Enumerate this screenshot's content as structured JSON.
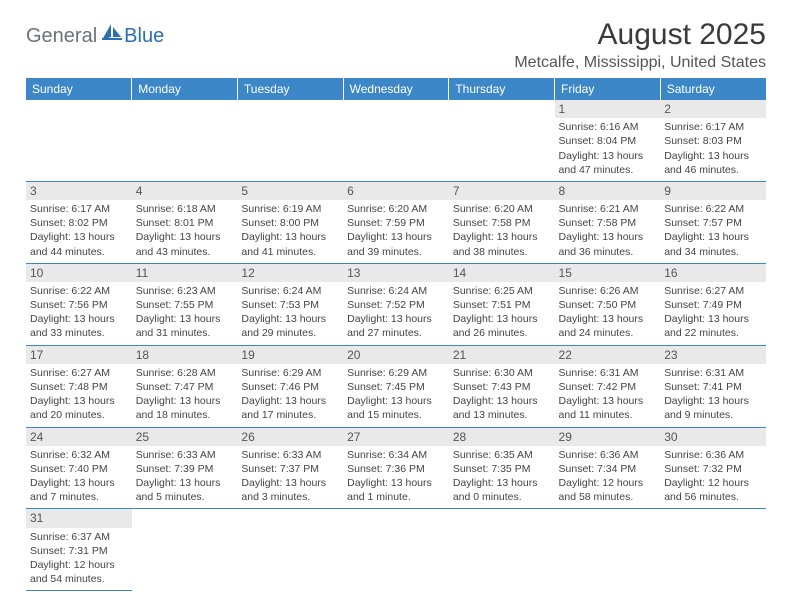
{
  "logo": {
    "part1": "General",
    "part2": "Blue",
    "shape_color": "#2b6fb0",
    "text1_color": "#6b7278"
  },
  "header": {
    "title": "August 2025",
    "location": "Metcalfe, Mississippi, United States"
  },
  "colors": {
    "header_bg": "#3c87c7",
    "header_fg": "#ffffff",
    "daynum_bg": "#e9e9e9",
    "border": "#3c87c7"
  },
  "weekdays": [
    "Sunday",
    "Monday",
    "Tuesday",
    "Wednesday",
    "Thursday",
    "Friday",
    "Saturday"
  ],
  "weeks": [
    [
      null,
      null,
      null,
      null,
      null,
      {
        "n": "1",
        "sunrise": "Sunrise: 6:16 AM",
        "sunset": "Sunset: 8:04 PM",
        "day1": "Daylight: 13 hours",
        "day2": "and 47 minutes."
      },
      {
        "n": "2",
        "sunrise": "Sunrise: 6:17 AM",
        "sunset": "Sunset: 8:03 PM",
        "day1": "Daylight: 13 hours",
        "day2": "and 46 minutes."
      }
    ],
    [
      {
        "n": "3",
        "sunrise": "Sunrise: 6:17 AM",
        "sunset": "Sunset: 8:02 PM",
        "day1": "Daylight: 13 hours",
        "day2": "and 44 minutes."
      },
      {
        "n": "4",
        "sunrise": "Sunrise: 6:18 AM",
        "sunset": "Sunset: 8:01 PM",
        "day1": "Daylight: 13 hours",
        "day2": "and 43 minutes."
      },
      {
        "n": "5",
        "sunrise": "Sunrise: 6:19 AM",
        "sunset": "Sunset: 8:00 PM",
        "day1": "Daylight: 13 hours",
        "day2": "and 41 minutes."
      },
      {
        "n": "6",
        "sunrise": "Sunrise: 6:20 AM",
        "sunset": "Sunset: 7:59 PM",
        "day1": "Daylight: 13 hours",
        "day2": "and 39 minutes."
      },
      {
        "n": "7",
        "sunrise": "Sunrise: 6:20 AM",
        "sunset": "Sunset: 7:58 PM",
        "day1": "Daylight: 13 hours",
        "day2": "and 38 minutes."
      },
      {
        "n": "8",
        "sunrise": "Sunrise: 6:21 AM",
        "sunset": "Sunset: 7:58 PM",
        "day1": "Daylight: 13 hours",
        "day2": "and 36 minutes."
      },
      {
        "n": "9",
        "sunrise": "Sunrise: 6:22 AM",
        "sunset": "Sunset: 7:57 PM",
        "day1": "Daylight: 13 hours",
        "day2": "and 34 minutes."
      }
    ],
    [
      {
        "n": "10",
        "sunrise": "Sunrise: 6:22 AM",
        "sunset": "Sunset: 7:56 PM",
        "day1": "Daylight: 13 hours",
        "day2": "and 33 minutes."
      },
      {
        "n": "11",
        "sunrise": "Sunrise: 6:23 AM",
        "sunset": "Sunset: 7:55 PM",
        "day1": "Daylight: 13 hours",
        "day2": "and 31 minutes."
      },
      {
        "n": "12",
        "sunrise": "Sunrise: 6:24 AM",
        "sunset": "Sunset: 7:53 PM",
        "day1": "Daylight: 13 hours",
        "day2": "and 29 minutes."
      },
      {
        "n": "13",
        "sunrise": "Sunrise: 6:24 AM",
        "sunset": "Sunset: 7:52 PM",
        "day1": "Daylight: 13 hours",
        "day2": "and 27 minutes."
      },
      {
        "n": "14",
        "sunrise": "Sunrise: 6:25 AM",
        "sunset": "Sunset: 7:51 PM",
        "day1": "Daylight: 13 hours",
        "day2": "and 26 minutes."
      },
      {
        "n": "15",
        "sunrise": "Sunrise: 6:26 AM",
        "sunset": "Sunset: 7:50 PM",
        "day1": "Daylight: 13 hours",
        "day2": "and 24 minutes."
      },
      {
        "n": "16",
        "sunrise": "Sunrise: 6:27 AM",
        "sunset": "Sunset: 7:49 PM",
        "day1": "Daylight: 13 hours",
        "day2": "and 22 minutes."
      }
    ],
    [
      {
        "n": "17",
        "sunrise": "Sunrise: 6:27 AM",
        "sunset": "Sunset: 7:48 PM",
        "day1": "Daylight: 13 hours",
        "day2": "and 20 minutes."
      },
      {
        "n": "18",
        "sunrise": "Sunrise: 6:28 AM",
        "sunset": "Sunset: 7:47 PM",
        "day1": "Daylight: 13 hours",
        "day2": "and 18 minutes."
      },
      {
        "n": "19",
        "sunrise": "Sunrise: 6:29 AM",
        "sunset": "Sunset: 7:46 PM",
        "day1": "Daylight: 13 hours",
        "day2": "and 17 minutes."
      },
      {
        "n": "20",
        "sunrise": "Sunrise: 6:29 AM",
        "sunset": "Sunset: 7:45 PM",
        "day1": "Daylight: 13 hours",
        "day2": "and 15 minutes."
      },
      {
        "n": "21",
        "sunrise": "Sunrise: 6:30 AM",
        "sunset": "Sunset: 7:43 PM",
        "day1": "Daylight: 13 hours",
        "day2": "and 13 minutes."
      },
      {
        "n": "22",
        "sunrise": "Sunrise: 6:31 AM",
        "sunset": "Sunset: 7:42 PM",
        "day1": "Daylight: 13 hours",
        "day2": "and 11 minutes."
      },
      {
        "n": "23",
        "sunrise": "Sunrise: 6:31 AM",
        "sunset": "Sunset: 7:41 PM",
        "day1": "Daylight: 13 hours",
        "day2": "and 9 minutes."
      }
    ],
    [
      {
        "n": "24",
        "sunrise": "Sunrise: 6:32 AM",
        "sunset": "Sunset: 7:40 PM",
        "day1": "Daylight: 13 hours",
        "day2": "and 7 minutes."
      },
      {
        "n": "25",
        "sunrise": "Sunrise: 6:33 AM",
        "sunset": "Sunset: 7:39 PM",
        "day1": "Daylight: 13 hours",
        "day2": "and 5 minutes."
      },
      {
        "n": "26",
        "sunrise": "Sunrise: 6:33 AM",
        "sunset": "Sunset: 7:37 PM",
        "day1": "Daylight: 13 hours",
        "day2": "and 3 minutes."
      },
      {
        "n": "27",
        "sunrise": "Sunrise: 6:34 AM",
        "sunset": "Sunset: 7:36 PM",
        "day1": "Daylight: 13 hours",
        "day2": "and 1 minute."
      },
      {
        "n": "28",
        "sunrise": "Sunrise: 6:35 AM",
        "sunset": "Sunset: 7:35 PM",
        "day1": "Daylight: 13 hours",
        "day2": "and 0 minutes."
      },
      {
        "n": "29",
        "sunrise": "Sunrise: 6:36 AM",
        "sunset": "Sunset: 7:34 PM",
        "day1": "Daylight: 12 hours",
        "day2": "and 58 minutes."
      },
      {
        "n": "30",
        "sunrise": "Sunrise: 6:36 AM",
        "sunset": "Sunset: 7:32 PM",
        "day1": "Daylight: 12 hours",
        "day2": "and 56 minutes."
      }
    ],
    [
      {
        "n": "31",
        "sunrise": "Sunrise: 6:37 AM",
        "sunset": "Sunset: 7:31 PM",
        "day1": "Daylight: 12 hours",
        "day2": "and 54 minutes."
      },
      null,
      null,
      null,
      null,
      null,
      null
    ]
  ]
}
